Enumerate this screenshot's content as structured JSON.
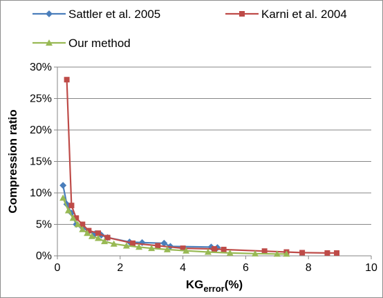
{
  "chart_data": {
    "type": "line",
    "xlabel": "KG",
    "xlabel_subscript": "error",
    "xlabel_suffix": "(%)",
    "ylabel": "Compression ratio",
    "xlim": [
      0,
      10
    ],
    "ylim": [
      0,
      30
    ],
    "x_ticks": [
      0,
      2,
      4,
      6,
      8,
      10
    ],
    "y_ticks": [
      0,
      5,
      10,
      15,
      20,
      25,
      30
    ],
    "y_tick_suffix": "%",
    "grid": "horizontal major gridlines",
    "legend_position": "top",
    "series": [
      {
        "name": "Sattler et al. 2005",
        "color": "#4a7ebb",
        "marker": "diamond",
        "points": [
          [
            0.18,
            11.2
          ],
          [
            0.3,
            8.2
          ],
          [
            0.45,
            6.8
          ],
          [
            0.6,
            5.0
          ],
          [
            0.8,
            4.5
          ],
          [
            1.0,
            3.9
          ],
          [
            1.2,
            3.5
          ],
          [
            1.4,
            3.3
          ],
          [
            1.6,
            2.9
          ],
          [
            2.3,
            2.2
          ],
          [
            2.7,
            2.1
          ],
          [
            3.4,
            2.0
          ],
          [
            3.6,
            1.5
          ],
          [
            4.9,
            1.4
          ],
          [
            5.1,
            1.3
          ]
        ]
      },
      {
        "name": "Karni et al. 2004",
        "color": "#be4b48",
        "marker": "square",
        "points": [
          [
            0.3,
            28.0
          ],
          [
            0.45,
            8.0
          ],
          [
            0.6,
            6.0
          ],
          [
            0.8,
            5.0
          ],
          [
            1.0,
            4.0
          ],
          [
            1.3,
            3.6
          ],
          [
            1.6,
            2.9
          ],
          [
            2.4,
            2.0
          ],
          [
            3.2,
            1.6
          ],
          [
            4.0,
            1.2
          ],
          [
            5.0,
            1.1
          ],
          [
            5.3,
            1.0
          ],
          [
            6.6,
            0.75
          ],
          [
            7.3,
            0.6
          ],
          [
            7.8,
            0.5
          ],
          [
            8.6,
            0.45
          ],
          [
            8.9,
            0.45
          ]
        ]
      },
      {
        "name": "Our method",
        "color": "#98b954",
        "marker": "triangle",
        "points": [
          [
            0.18,
            9.2
          ],
          [
            0.35,
            7.2
          ],
          [
            0.5,
            6.0
          ],
          [
            0.65,
            5.0
          ],
          [
            0.8,
            4.2
          ],
          [
            0.95,
            3.6
          ],
          [
            1.1,
            3.1
          ],
          [
            1.3,
            2.8
          ],
          [
            1.5,
            2.3
          ],
          [
            1.8,
            1.9
          ],
          [
            2.2,
            1.6
          ],
          [
            2.6,
            1.4
          ],
          [
            3.0,
            1.2
          ],
          [
            3.5,
            1.0
          ],
          [
            4.1,
            0.8
          ],
          [
            4.8,
            0.6
          ],
          [
            5.5,
            0.45
          ],
          [
            6.3,
            0.35
          ],
          [
            7.0,
            0.3
          ],
          [
            7.3,
            0.3
          ]
        ]
      }
    ]
  }
}
